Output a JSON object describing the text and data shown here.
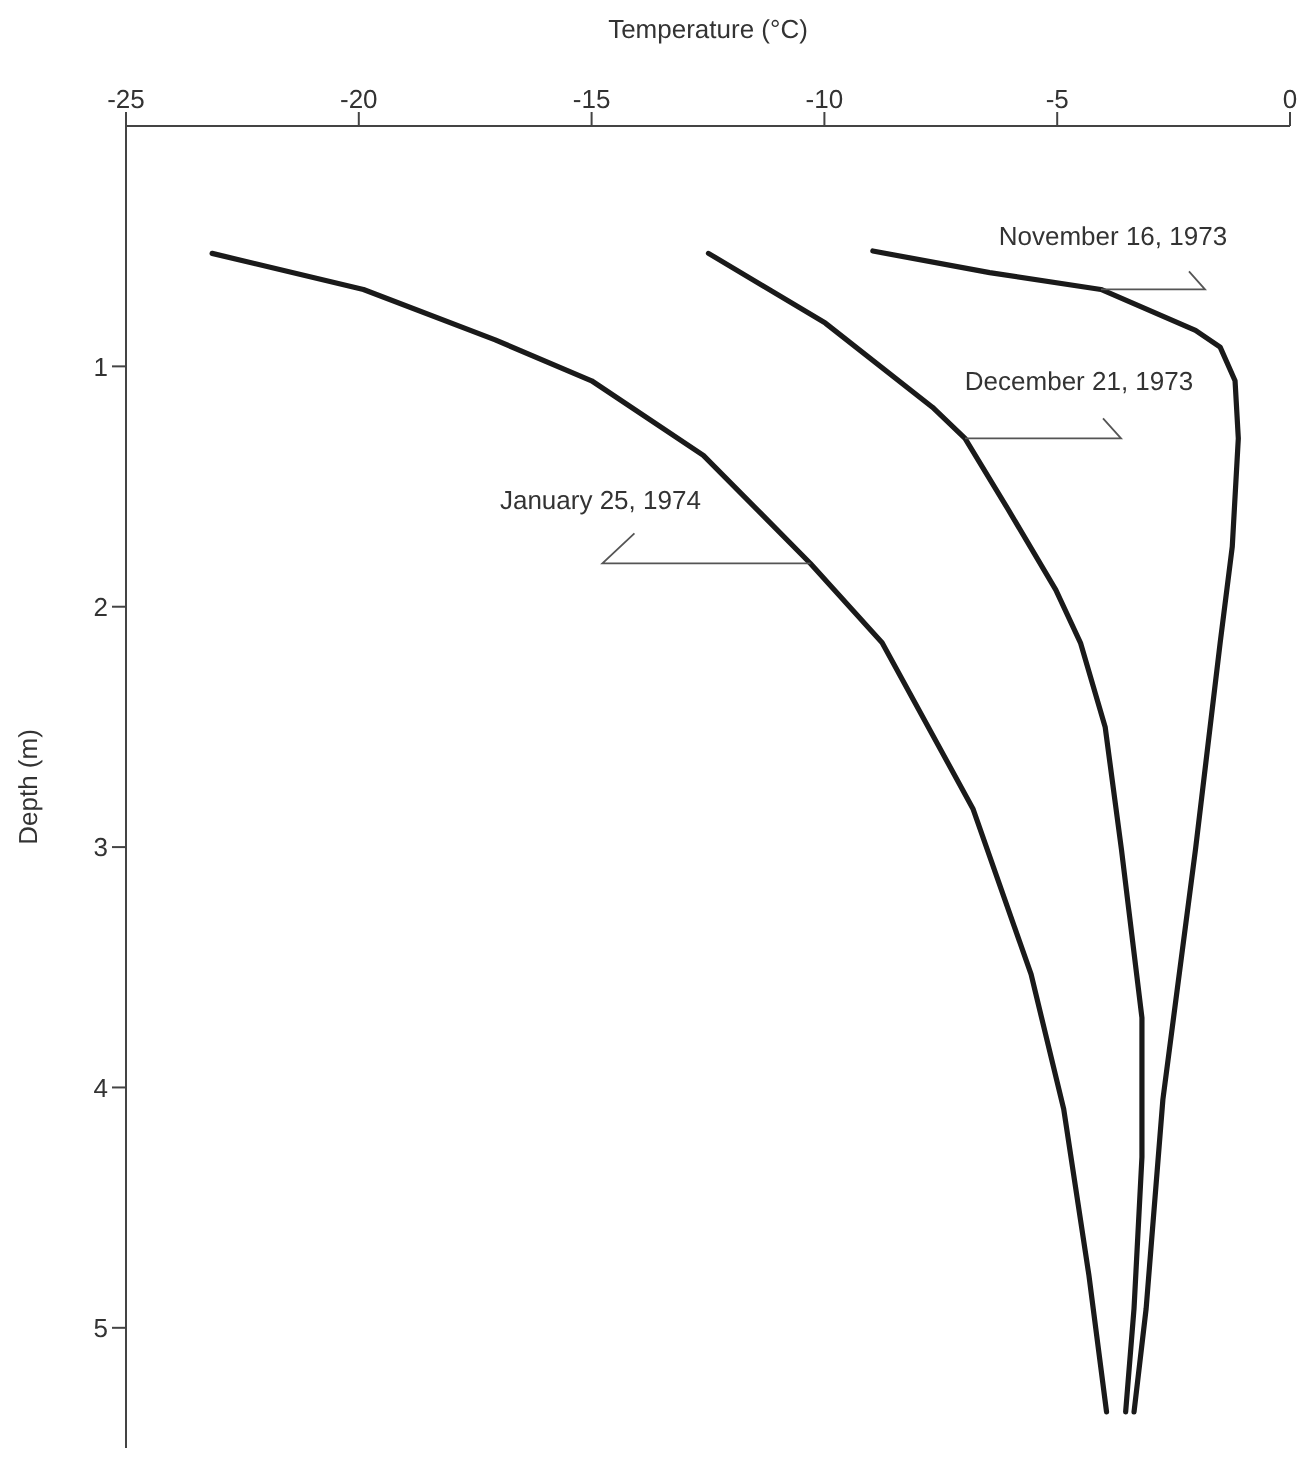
{
  "chart_data": {
    "type": "line",
    "xlabel": "Temperature (°C)",
    "ylabel": "Depth (m)",
    "xlim": [
      -25,
      0
    ],
    "xticks": [
      -25,
      -20,
      -15,
      -10,
      -5,
      0
    ],
    "ylim": [
      5.5,
      0
    ],
    "yticks": [
      1,
      2,
      3,
      4,
      5
    ],
    "series": [
      {
        "name": "November 16, 1973",
        "color": "#1a1a1a",
        "x": [
          -8.96,
          -6.45,
          -4.06,
          -2.03,
          -1.5,
          -1.18,
          -1.11,
          -1.24,
          -1.5,
          -2.03,
          -2.73,
          -3.09,
          -3.35
        ],
        "values": [
          0.52,
          0.61,
          0.68,
          0.85,
          0.92,
          1.06,
          1.3,
          1.75,
          2.15,
          3.01,
          4.05,
          4.92,
          5.35
        ]
      },
      {
        "name": "December 21, 1973",
        "color": "#1a1a1a",
        "x": [
          -12.49,
          -9.98,
          -7.68,
          -6.98,
          -6.1,
          -5.03,
          -4.5,
          -3.97,
          -3.62,
          -3.18,
          -3.18,
          -3.35,
          -3.53
        ],
        "values": [
          0.53,
          0.82,
          1.17,
          1.3,
          1.58,
          1.93,
          2.15,
          2.5,
          3.01,
          3.71,
          4.29,
          4.92,
          5.35
        ]
      },
      {
        "name": "January 25, 1974",
        "color": "#1a1a1a",
        "x": [
          -23.15,
          -19.9,
          -17.07,
          -15.0,
          -12.6,
          -10.3,
          -8.76,
          -6.81,
          -5.56,
          -4.86,
          -4.32,
          -3.94
        ],
        "values": [
          0.53,
          0.68,
          0.89,
          1.06,
          1.37,
          1.82,
          2.15,
          2.84,
          3.53,
          4.09,
          4.78,
          5.35
        ]
      }
    ]
  }
}
